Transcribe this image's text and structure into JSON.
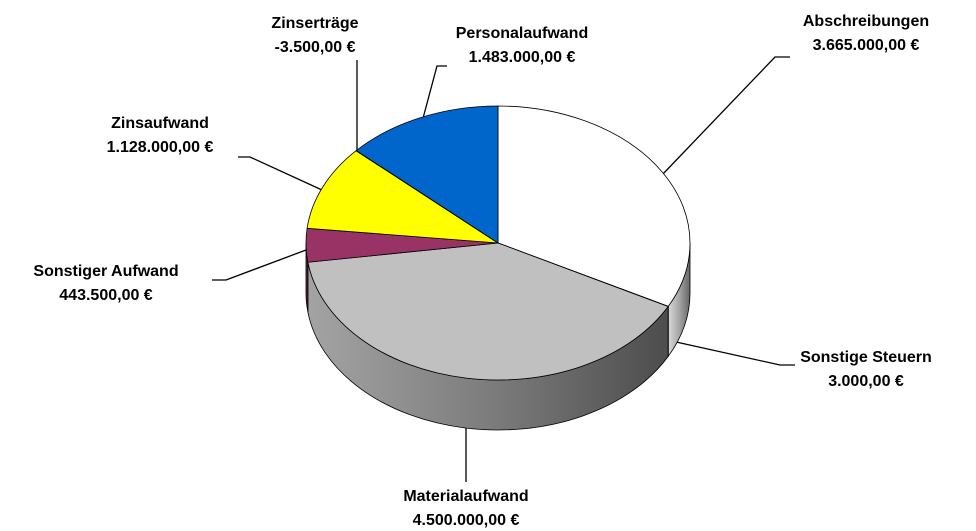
{
  "chart_data": {
    "type": "pie",
    "categories": [
      "Abschreibungen",
      "Sonstige Steuern",
      "Materialaufwand",
      "Sonstiger Aufwand",
      "Zinsaufwand",
      "Zinserträge",
      "Personalaufwand"
    ],
    "values": [
      3665000,
      3000,
      4500000,
      443500,
      1128000,
      -3500,
      1483000
    ],
    "value_labels": [
      "3.665.000,00 €",
      "3.000,00 €",
      "4.500.000,00 €",
      "443.500,00 €",
      "1.128.000,00 €",
      "-3.500,00 €",
      "1.483.000,00 €"
    ],
    "colors": [
      "#ffffff",
      "#404040",
      "#c0c0c0",
      "#993366",
      "#ffff00",
      "#c0c0c0",
      "#0066cc"
    ]
  }
}
